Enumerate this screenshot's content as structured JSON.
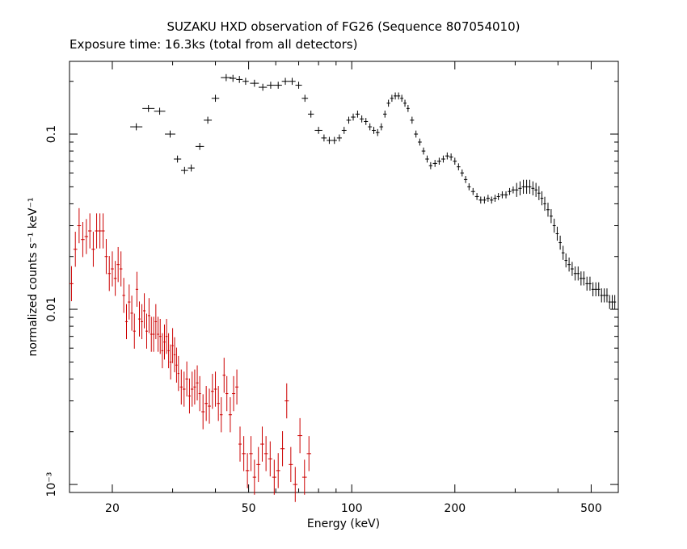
{
  "chart_data": {
    "type": "scatter",
    "title": "SUZAKU HXD observation of FG26 (Sequence 807054010)",
    "subtitle": "Exposure time: 16.3ks (total from all detectors)",
    "xlabel": "Energy (keV)",
    "ylabel": "normalized counts s⁻¹ keV⁻¹",
    "x_scale": "log",
    "y_scale": "log",
    "xlim": [
      15,
      600
    ],
    "ylim": [
      0.0009,
      0.26
    ],
    "x_ticks": [
      {
        "value": 20,
        "label": "20"
      },
      {
        "value": 50,
        "label": "50"
      },
      {
        "value": 100,
        "label": "100"
      },
      {
        "value": 200,
        "label": "200"
      },
      {
        "value": 500,
        "label": "500"
      }
    ],
    "y_ticks": [
      {
        "value": 0.1,
        "label": "0.1"
      },
      {
        "value": 0.01,
        "label": "0.01"
      },
      {
        "value": 0.001,
        "label": "10⁻³"
      }
    ],
    "grid": false,
    "series": [
      {
        "color": "#000000",
        "points": [
          [
            23.5,
            0.11
          ],
          [
            25.5,
            0.14
          ],
          [
            27.5,
            0.135
          ],
          [
            29.5,
            0.1
          ],
          [
            31,
            0.072
          ],
          [
            32.5,
            0.062
          ],
          [
            34,
            0.064
          ],
          [
            36,
            0.085
          ],
          [
            38,
            0.12
          ],
          [
            40,
            0.16
          ],
          [
            43,
            0.21
          ],
          [
            45,
            0.208
          ],
          [
            47,
            0.205
          ],
          [
            49,
            0.2
          ],
          [
            52,
            0.195
          ],
          [
            55,
            0.185
          ],
          [
            58,
            0.19
          ],
          [
            61,
            0.19
          ],
          [
            64,
            0.2
          ],
          [
            67,
            0.2
          ],
          [
            70,
            0.19
          ],
          [
            73,
            0.16
          ],
          [
            76,
            0.13
          ],
          [
            80,
            0.105
          ],
          [
            83,
            0.095
          ],
          [
            86,
            0.092
          ],
          [
            89,
            0.092
          ],
          [
            92,
            0.095
          ],
          [
            95,
            0.105
          ],
          [
            98,
            0.12
          ],
          [
            101,
            0.125
          ],
          [
            104,
            0.13
          ],
          [
            107,
            0.122
          ],
          [
            110,
            0.118
          ],
          [
            113,
            0.11
          ],
          [
            116,
            0.105
          ],
          [
            119,
            0.102
          ],
          [
            122,
            0.11
          ],
          [
            125,
            0.13
          ],
          [
            128,
            0.15
          ],
          [
            131,
            0.16
          ],
          [
            134,
            0.165
          ],
          [
            137,
            0.165
          ],
          [
            140,
            0.16
          ],
          [
            143,
            0.15
          ],
          [
            146,
            0.14
          ],
          [
            150,
            0.12
          ],
          [
            154,
            0.1
          ],
          [
            158,
            0.09
          ],
          [
            162,
            0.08
          ],
          [
            166,
            0.072
          ],
          [
            170,
            0.066
          ],
          [
            175,
            0.068
          ],
          [
            180,
            0.07
          ],
          [
            185,
            0.072
          ],
          [
            190,
            0.075
          ],
          [
            195,
            0.074
          ],
          [
            200,
            0.07
          ],
          [
            205,
            0.065
          ],
          [
            210,
            0.06
          ],
          [
            215,
            0.055
          ],
          [
            220,
            0.05
          ],
          [
            226,
            0.047
          ],
          [
            232,
            0.044
          ],
          [
            238,
            0.042
          ],
          [
            244,
            0.042
          ],
          [
            250,
            0.043
          ],
          [
            256,
            0.042
          ],
          [
            262,
            0.043
          ],
          [
            268,
            0.044
          ],
          [
            275,
            0.045
          ],
          [
            282,
            0.045
          ],
          [
            289,
            0.047
          ],
          [
            296,
            0.048
          ],
          [
            303,
            0.048
          ],
          [
            310,
            0.049
          ],
          [
            317,
            0.05
          ],
          [
            324,
            0.05
          ],
          [
            331,
            0.05
          ],
          [
            338,
            0.049
          ],
          [
            345,
            0.048
          ],
          [
            352,
            0.046
          ],
          [
            359,
            0.043
          ],
          [
            366,
            0.04
          ],
          [
            374,
            0.037
          ],
          [
            382,
            0.034
          ],
          [
            390,
            0.03
          ],
          [
            398,
            0.027
          ],
          [
            406,
            0.024
          ],
          [
            414,
            0.021
          ],
          [
            422,
            0.019
          ],
          [
            431,
            0.018
          ],
          [
            440,
            0.017
          ],
          [
            449,
            0.016
          ],
          [
            458,
            0.016
          ],
          [
            467,
            0.015
          ],
          [
            476,
            0.015
          ],
          [
            486,
            0.014
          ],
          [
            496,
            0.014
          ],
          [
            506,
            0.013
          ],
          [
            516,
            0.013
          ],
          [
            526,
            0.013
          ],
          [
            536,
            0.012
          ],
          [
            546,
            0.012
          ],
          [
            556,
            0.012
          ],
          [
            566,
            0.011
          ],
          [
            576,
            0.011
          ],
          [
            586,
            0.011
          ]
        ]
      },
      {
        "color": "#cc0000",
        "points": [
          [
            15.2,
            0.014
          ],
          [
            15.6,
            0.022
          ],
          [
            16.0,
            0.03
          ],
          [
            16.4,
            0.025
          ],
          [
            16.8,
            0.026
          ],
          [
            17.2,
            0.028
          ],
          [
            17.6,
            0.022
          ],
          [
            18.0,
            0.028
          ],
          [
            18.4,
            0.028
          ],
          [
            18.8,
            0.028
          ],
          [
            19.2,
            0.02
          ],
          [
            19.6,
            0.016
          ],
          [
            20.0,
            0.017
          ],
          [
            20.4,
            0.015
          ],
          [
            20.8,
            0.018
          ],
          [
            21.2,
            0.017
          ],
          [
            21.6,
            0.012
          ],
          [
            22.0,
            0.0085
          ],
          [
            22.4,
            0.011
          ],
          [
            22.8,
            0.0095
          ],
          [
            23.2,
            0.0075
          ],
          [
            23.6,
            0.013
          ],
          [
            24.0,
            0.0088
          ],
          [
            24.4,
            0.0085
          ],
          [
            24.8,
            0.0098
          ],
          [
            25.2,
            0.0075
          ],
          [
            25.6,
            0.0092
          ],
          [
            26.0,
            0.0072
          ],
          [
            26.4,
            0.0072
          ],
          [
            26.8,
            0.0085
          ],
          [
            27.2,
            0.0072
          ],
          [
            27.6,
            0.007
          ],
          [
            28.0,
            0.0058
          ],
          [
            28.4,
            0.0065
          ],
          [
            28.8,
            0.007
          ],
          [
            29.2,
            0.0058
          ],
          [
            29.6,
            0.005
          ],
          [
            30.0,
            0.0062
          ],
          [
            30.4,
            0.0055
          ],
          [
            30.8,
            0.0048
          ],
          [
            31.2,
            0.0043
          ],
          [
            31.8,
            0.0036
          ],
          [
            32.4,
            0.0035
          ],
          [
            33.0,
            0.004
          ],
          [
            33.6,
            0.0032
          ],
          [
            34.2,
            0.0035
          ],
          [
            34.8,
            0.0036
          ],
          [
            35.4,
            0.0038
          ],
          [
            36.0,
            0.0033
          ],
          [
            36.8,
            0.0026
          ],
          [
            37.6,
            0.0029
          ],
          [
            38.4,
            0.0028
          ],
          [
            39.2,
            0.0034
          ],
          [
            40.0,
            0.0035
          ],
          [
            40.8,
            0.0029
          ],
          [
            41.6,
            0.0025
          ],
          [
            42.4,
            0.0042
          ],
          [
            43.2,
            0.0033
          ],
          [
            44.2,
            0.0025
          ],
          [
            45.2,
            0.0033
          ],
          [
            46.2,
            0.0036
          ],
          [
            47.2,
            0.0017
          ],
          [
            48.4,
            0.0015
          ],
          [
            49.6,
            0.0012
          ],
          [
            50.8,
            0.0015
          ],
          [
            52.0,
            0.0011
          ],
          [
            53.4,
            0.0013
          ],
          [
            54.8,
            0.0017
          ],
          [
            56.2,
            0.0015
          ],
          [
            57.8,
            0.0014
          ],
          [
            59.4,
            0.0011
          ],
          [
            61.0,
            0.0012
          ],
          [
            62.8,
            0.0016
          ],
          [
            64.6,
            0.003
          ],
          [
            66.4,
            0.0013
          ],
          [
            68.4,
            0.001
          ],
          [
            70.6,
            0.0019
          ],
          [
            72.8,
            0.0011
          ],
          [
            75.0,
            0.0015
          ]
        ]
      }
    ]
  }
}
